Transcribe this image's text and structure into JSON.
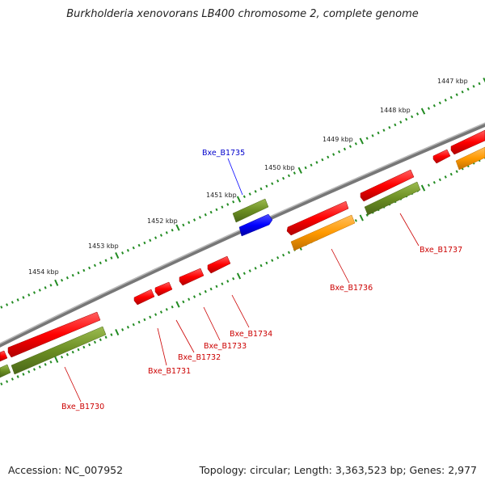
{
  "title": "Burkholderia xenovorans LB400 chromosome 2, complete genome",
  "footer": {
    "accession": "Accession: NC_007952",
    "summary": "Topology: circular; Length: 3,363,523 bp; Genes: 2,977"
  },
  "colors": {
    "forward_cds": "#ff0000",
    "reverse_cds": "#ff9900",
    "gene": "#6b8e23",
    "highlight": "#0000ff",
    "backbone": "#888888",
    "label_highlight": "#0000cc",
    "label_normal": "#cc0000",
    "tick": "#228b22"
  },
  "kbp_ticks": [
    "1447 kbp",
    "1448 kbp",
    "1449 kbp",
    "1450 kbp",
    "1451 kbp",
    "1452 kbp",
    "1453 kbp",
    "1454 kbp"
  ],
  "genes": [
    {
      "label": "Bxe_B1735",
      "highlight": true
    },
    {
      "label": "Bxe_B1737",
      "highlight": false
    },
    {
      "label": "Bxe_B1736",
      "highlight": false
    },
    {
      "label": "Bxe_B1734",
      "highlight": false
    },
    {
      "label": "Bxe_B1733",
      "highlight": false
    },
    {
      "label": "Bxe_B1732",
      "highlight": false
    },
    {
      "label": "Bxe_B1731",
      "highlight": false
    },
    {
      "label": "Bxe_B1730",
      "highlight": false
    }
  ]
}
